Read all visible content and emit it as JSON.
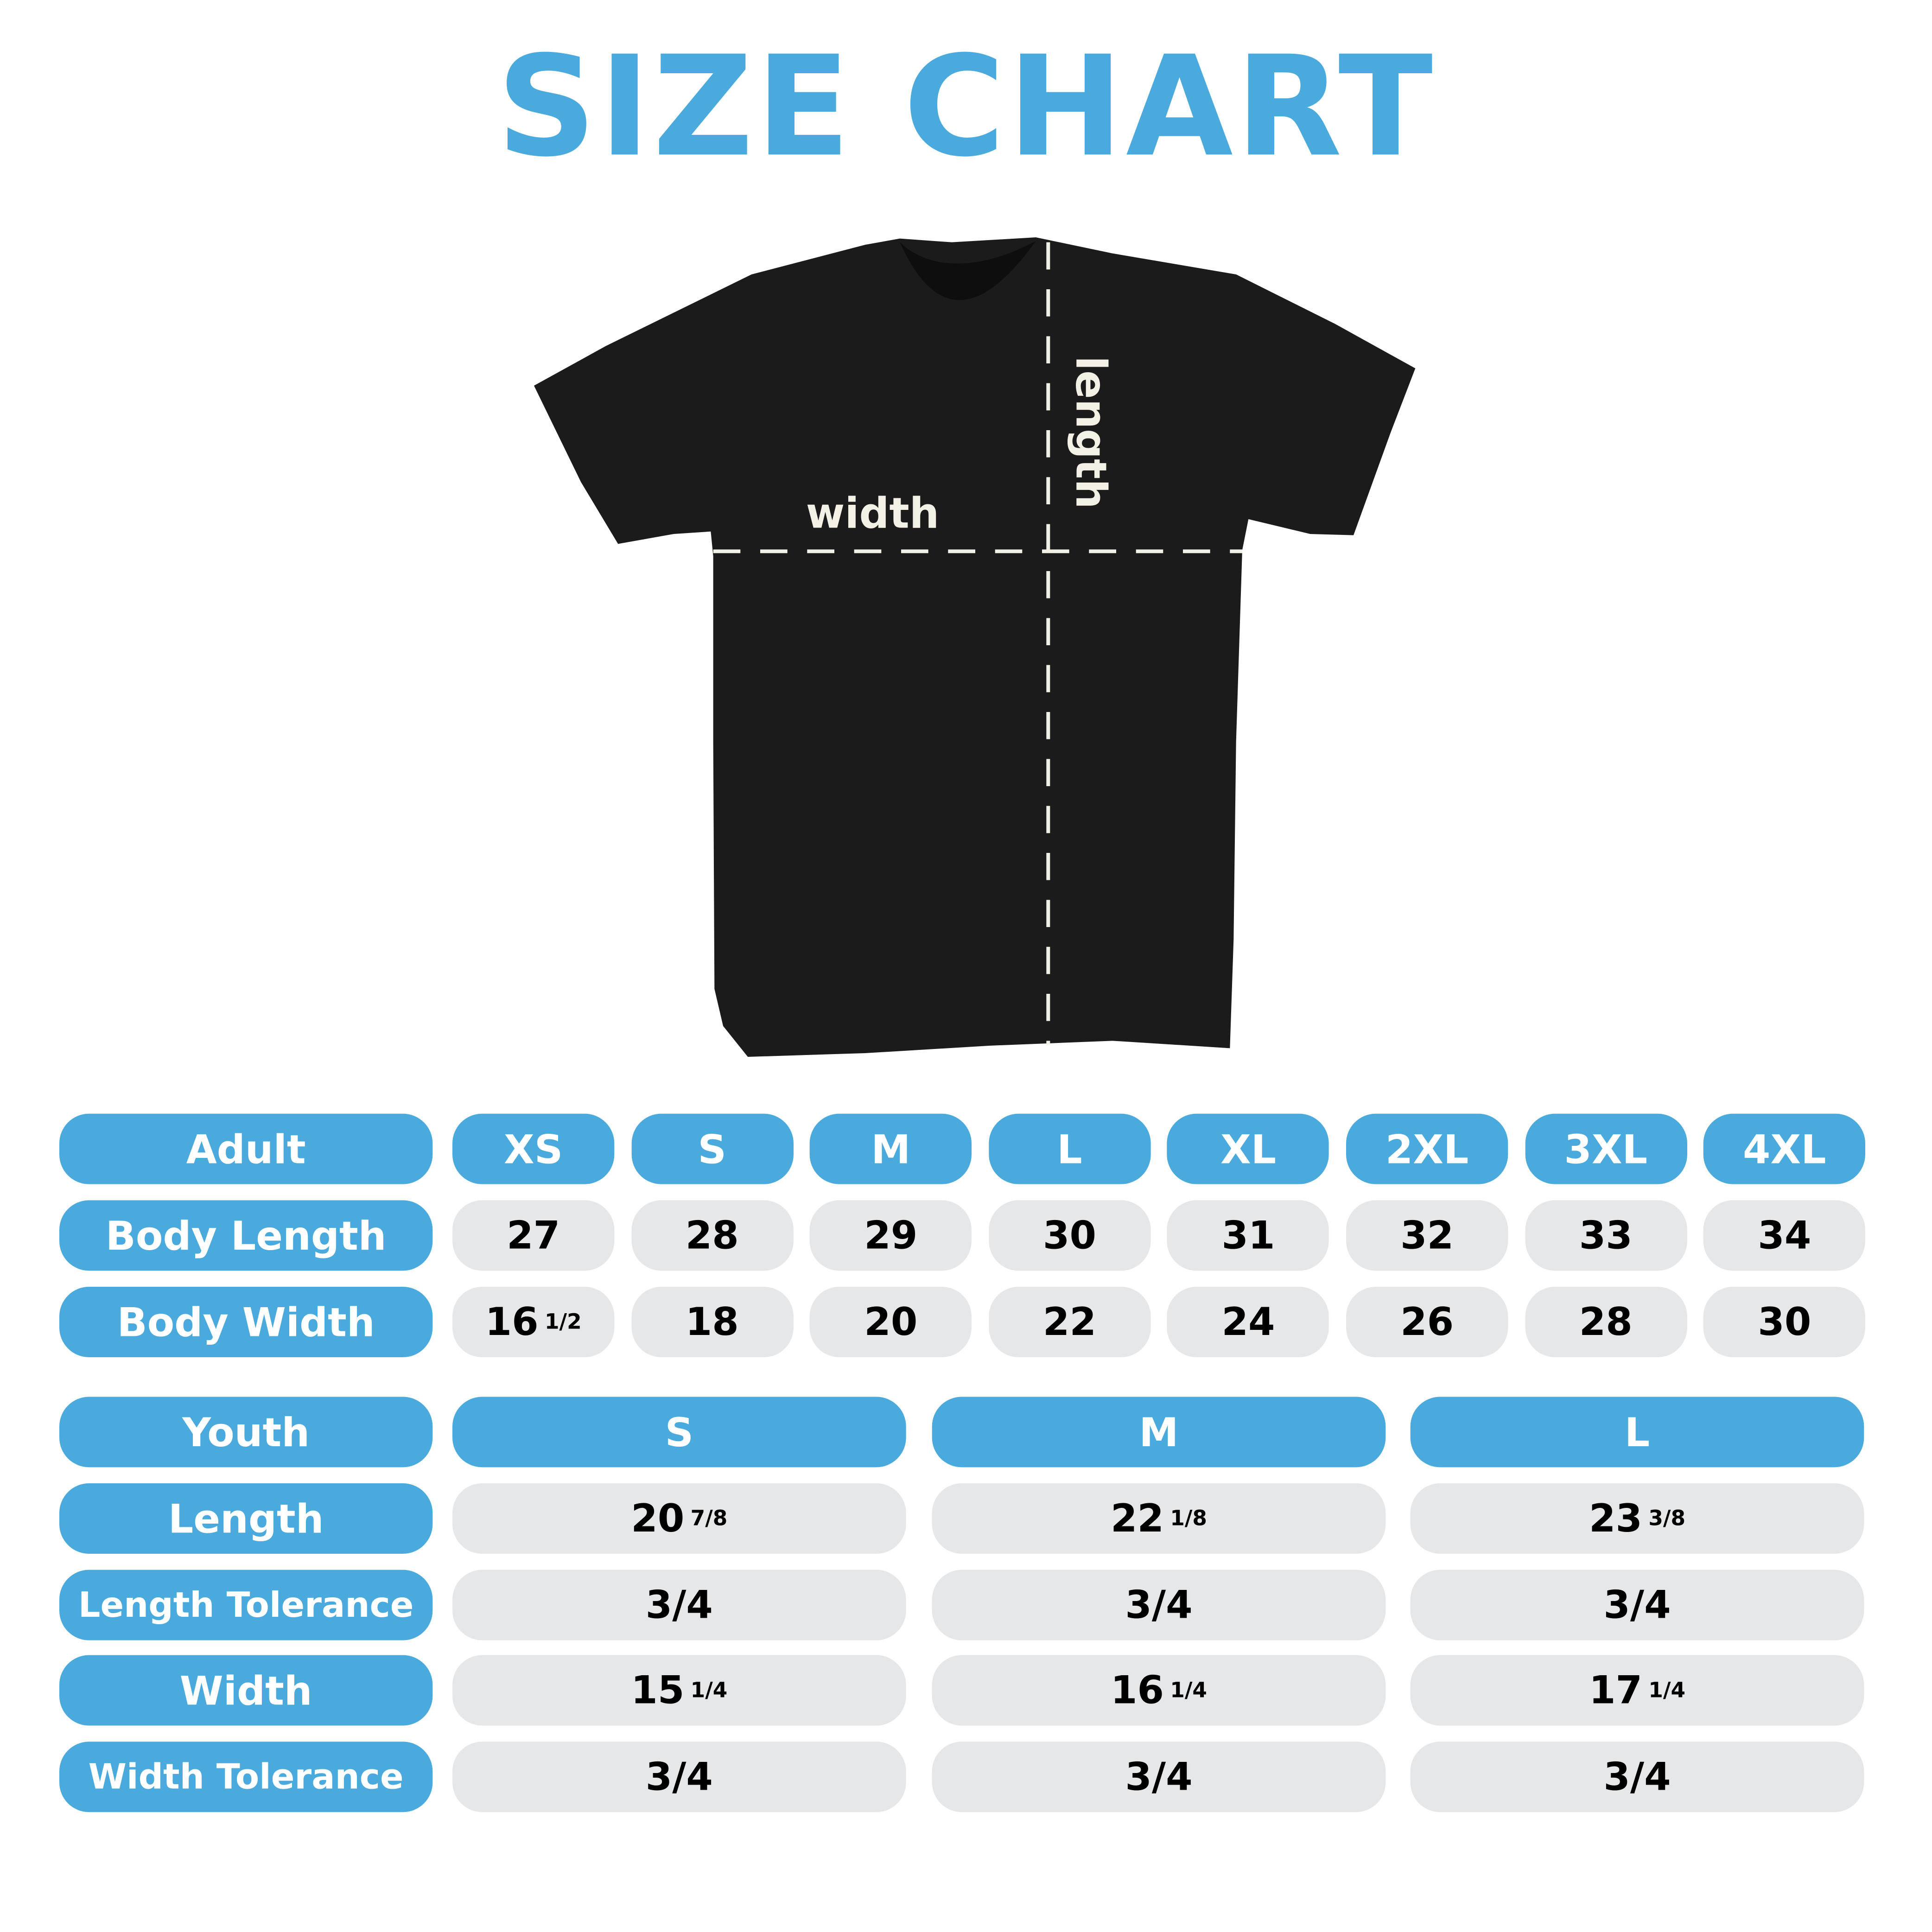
{
  "title": "SIZE CHART",
  "colors": {
    "accent": "#4aaade",
    "cell": "#e6e7e9",
    "shirt": "#1b1b1b"
  },
  "diagram": {
    "width_label": "width",
    "length_label": "length"
  },
  "adult": {
    "header": "Adult",
    "sizes": [
      "XS",
      "S",
      "M",
      "L",
      "XL",
      "2XL",
      "3XL",
      "4XL"
    ],
    "rows": [
      {
        "label": "Body Length",
        "values": [
          {
            "whole": "27",
            "frac": ""
          },
          {
            "whole": "28",
            "frac": ""
          },
          {
            "whole": "29",
            "frac": ""
          },
          {
            "whole": "30",
            "frac": ""
          },
          {
            "whole": "31",
            "frac": ""
          },
          {
            "whole": "32",
            "frac": ""
          },
          {
            "whole": "33",
            "frac": ""
          },
          {
            "whole": "34",
            "frac": ""
          }
        ]
      },
      {
        "label": "Body Width",
        "values": [
          {
            "whole": "16",
            "frac": "1/2"
          },
          {
            "whole": "18",
            "frac": ""
          },
          {
            "whole": "20",
            "frac": ""
          },
          {
            "whole": "22",
            "frac": ""
          },
          {
            "whole": "24",
            "frac": ""
          },
          {
            "whole": "26",
            "frac": ""
          },
          {
            "whole": "28",
            "frac": ""
          },
          {
            "whole": "30",
            "frac": ""
          }
        ]
      }
    ]
  },
  "youth": {
    "header": "Youth",
    "sizes": [
      "S",
      "M",
      "L"
    ],
    "rows": [
      {
        "label": "Length",
        "values": [
          {
            "whole": "20",
            "frac": "7/8"
          },
          {
            "whole": "22",
            "frac": "1/8"
          },
          {
            "whole": "23",
            "frac": "3/8"
          }
        ]
      },
      {
        "label": "Length Tolerance",
        "values": [
          {
            "whole": "3/4",
            "frac": ""
          },
          {
            "whole": "3/4",
            "frac": ""
          },
          {
            "whole": "3/4",
            "frac": ""
          }
        ]
      },
      {
        "label": "Width",
        "values": [
          {
            "whole": "15",
            "frac": "1/4"
          },
          {
            "whole": "16",
            "frac": "1/4"
          },
          {
            "whole": "17",
            "frac": "1/4"
          }
        ]
      },
      {
        "label": "Width Tolerance",
        "values": [
          {
            "whole": "3/4",
            "frac": ""
          },
          {
            "whole": "3/4",
            "frac": ""
          },
          {
            "whole": "3/4",
            "frac": ""
          }
        ]
      }
    ]
  }
}
